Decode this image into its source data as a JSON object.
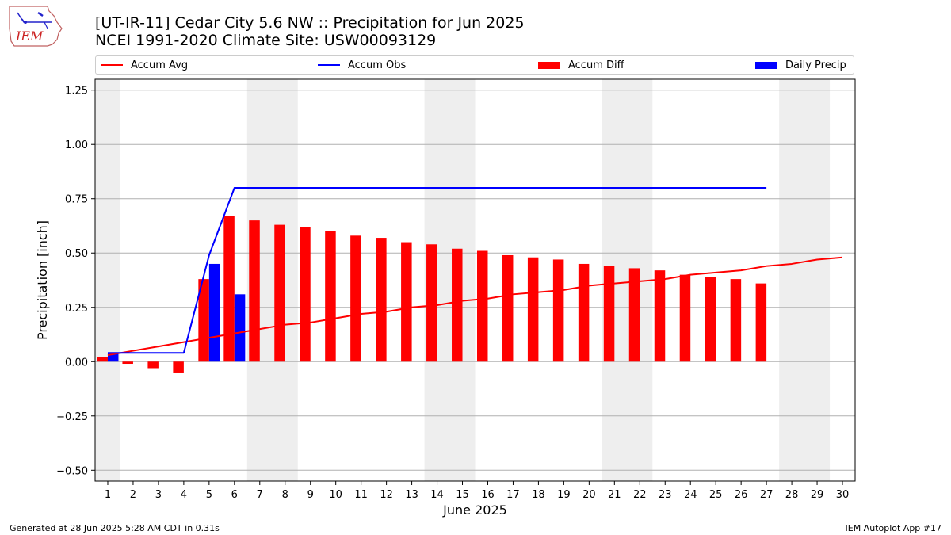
{
  "header": {
    "logo_text": "IEM",
    "title_line1": "[UT-IR-11] Cedar City 5.6 NW :: Precipitation for Jun 2025",
    "title_line2": "NCEI 1991-2020 Climate Site: USW00093129"
  },
  "legend": {
    "placement": "above-plot",
    "items": [
      {
        "label": "Accum Avg",
        "kind": "line",
        "color": "#ff0000"
      },
      {
        "label": "Accum Obs",
        "kind": "line",
        "color": "#0000ff"
      },
      {
        "label": "Accum Diff",
        "kind": "bar",
        "color": "#ff0000"
      },
      {
        "label": "Daily Precip",
        "kind": "bar",
        "color": "#0000ff"
      }
    ]
  },
  "chart_data": {
    "type": "bar",
    "title": "[UT-IR-11] Cedar City 5.6 NW :: Precipitation for Jun 2025",
    "subtitle": "NCEI 1991-2020 Climate Site: USW00093129",
    "xlabel": "June 2025",
    "ylabel": "Precipitation [inch]",
    "x": [
      1,
      2,
      3,
      4,
      5,
      6,
      7,
      8,
      9,
      10,
      11,
      12,
      13,
      14,
      15,
      16,
      17,
      18,
      19,
      20,
      21,
      22,
      23,
      24,
      25,
      26,
      27,
      28,
      29,
      30
    ],
    "xlim": [
      0.5,
      30.5
    ],
    "ylim": [
      -0.55,
      1.3
    ],
    "yticks": [
      -0.5,
      -0.25,
      0.0,
      0.25,
      0.5,
      0.75,
      1.0,
      1.25
    ],
    "ytick_labels": [
      "−0.50",
      "−0.25",
      "0.00",
      "0.25",
      "0.50",
      "0.75",
      "1.00",
      "1.25"
    ],
    "grid": "horizontal",
    "weekend_shading": [
      [
        0.5,
        1.5
      ],
      [
        6.5,
        8.5
      ],
      [
        13.5,
        15.5
      ],
      [
        20.5,
        22.5
      ],
      [
        27.5,
        29.5
      ]
    ],
    "colors": {
      "avg": "#ff0000",
      "obs": "#0000ff",
      "diff": "#ff0000",
      "daily": "#0000ff",
      "shade": "#eeeeee"
    },
    "series": [
      {
        "name": "Accum Avg",
        "kind": "line",
        "x": [
          1,
          2,
          3,
          4,
          5,
          6,
          7,
          8,
          9,
          10,
          11,
          12,
          13,
          14,
          15,
          16,
          17,
          18,
          19,
          20,
          21,
          22,
          23,
          24,
          25,
          26,
          27,
          28,
          29,
          30
        ],
        "values": [
          0.03,
          0.05,
          0.07,
          0.09,
          0.11,
          0.13,
          0.15,
          0.17,
          0.18,
          0.2,
          0.22,
          0.23,
          0.25,
          0.26,
          0.28,
          0.29,
          0.31,
          0.32,
          0.33,
          0.35,
          0.36,
          0.37,
          0.38,
          0.4,
          0.41,
          0.42,
          0.44,
          0.45,
          0.47,
          0.48
        ]
      },
      {
        "name": "Accum Obs",
        "kind": "line",
        "x": [
          1,
          2,
          3,
          4,
          5,
          6,
          7,
          8,
          9,
          10,
          11,
          12,
          13,
          14,
          15,
          16,
          17,
          18,
          19,
          20,
          21,
          22,
          23,
          24,
          25,
          26,
          27
        ],
        "values": [
          0.04,
          0.04,
          0.04,
          0.04,
          0.49,
          0.8,
          0.8,
          0.8,
          0.8,
          0.8,
          0.8,
          0.8,
          0.8,
          0.8,
          0.8,
          0.8,
          0.8,
          0.8,
          0.8,
          0.8,
          0.8,
          0.8,
          0.8,
          0.8,
          0.8,
          0.8,
          0.8
        ]
      },
      {
        "name": "Accum Diff",
        "kind": "bar",
        "x": [
          1,
          2,
          3,
          4,
          5,
          6,
          7,
          8,
          9,
          10,
          11,
          12,
          13,
          14,
          15,
          16,
          17,
          18,
          19,
          20,
          21,
          22,
          23,
          24,
          25,
          26,
          27
        ],
        "values": [
          0.02,
          -0.01,
          -0.03,
          -0.05,
          0.38,
          0.67,
          0.65,
          0.63,
          0.62,
          0.6,
          0.58,
          0.57,
          0.55,
          0.54,
          0.52,
          0.51,
          0.49,
          0.48,
          0.47,
          0.45,
          0.44,
          0.43,
          0.42,
          0.4,
          0.39,
          0.38,
          0.36
        ]
      },
      {
        "name": "Daily Precip",
        "kind": "bar",
        "x": [
          1,
          5,
          6
        ],
        "values": [
          0.04,
          0.45,
          0.31
        ]
      }
    ]
  },
  "footer": {
    "left": "Generated at 28 Jun 2025 5:28 AM CDT in 0.31s",
    "right": "IEM Autoplot App #17"
  }
}
